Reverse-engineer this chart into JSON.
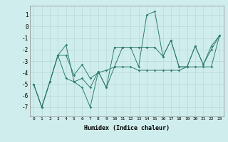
{
  "title": "",
  "xlabel": "Humidex (Indice chaleur)",
  "x_values": [
    0,
    1,
    2,
    3,
    4,
    5,
    6,
    7,
    8,
    9,
    10,
    11,
    12,
    13,
    14,
    15,
    16,
    17,
    18,
    19,
    20,
    21,
    22,
    23
  ],
  "line1_y": [
    -5.0,
    -7.0,
    -4.8,
    -2.5,
    -1.6,
    -4.8,
    -5.3,
    -7.0,
    -3.9,
    -5.3,
    -1.8,
    -1.8,
    -1.8,
    -3.5,
    1.0,
    1.3,
    -2.6,
    -1.2,
    -3.5,
    -3.5,
    -1.7,
    -3.3,
    -2.0,
    -0.8
  ],
  "line2_y": [
    -5.0,
    -7.0,
    -4.8,
    -2.5,
    -2.5,
    -4.2,
    -3.3,
    -4.5,
    -4.0,
    -3.8,
    -3.5,
    -1.8,
    -1.8,
    -1.8,
    -1.8,
    -1.8,
    -2.6,
    -1.2,
    -3.5,
    -3.5,
    -1.7,
    -3.3,
    -1.7,
    -0.8
  ],
  "line3_y": [
    -5.0,
    -7.0,
    -4.8,
    -2.5,
    -4.5,
    -4.8,
    -4.5,
    -5.3,
    -3.9,
    -5.3,
    -3.5,
    -3.5,
    -3.5,
    -3.8,
    -3.8,
    -3.8,
    -3.8,
    -3.8,
    -3.8,
    -3.5,
    -3.5,
    -3.5,
    -3.5,
    -0.8
  ],
  "ylim": [
    -7.8,
    1.8
  ],
  "xlim": [
    -0.5,
    23.5
  ],
  "yticks": [
    1,
    0,
    -1,
    -2,
    -3,
    -4,
    -5,
    -6,
    -7
  ],
  "xticks": [
    0,
    1,
    2,
    3,
    4,
    5,
    6,
    7,
    8,
    9,
    10,
    11,
    12,
    13,
    14,
    15,
    16,
    17,
    18,
    19,
    20,
    21,
    22,
    23
  ],
  "line_color": "#2e7d6e",
  "bg_color": "#d0eded",
  "grid_color": "#b8d8d8",
  "fig_bg": "#d0eded"
}
